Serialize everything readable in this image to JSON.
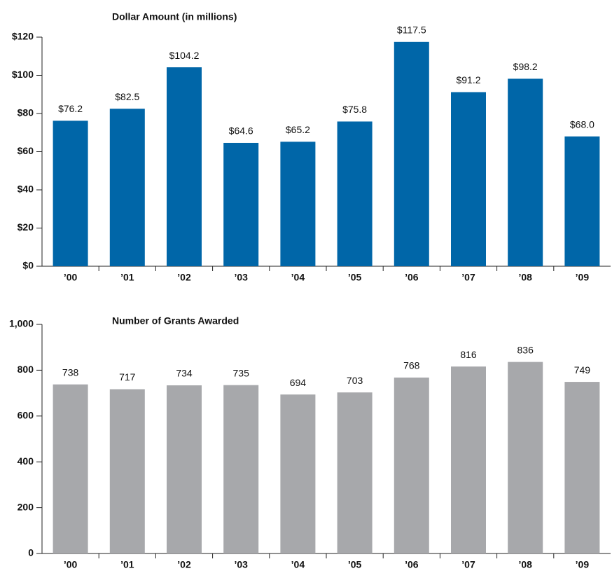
{
  "chart_data": [
    {
      "type": "bar",
      "title": "Dollar Amount (in millions)",
      "categories": [
        "’00",
        "’01",
        "’02",
        "’03",
        "’04",
        "’05",
        "’06",
        "’07",
        "’08",
        "’09"
      ],
      "values": [
        76.2,
        82.5,
        104.2,
        64.6,
        65.2,
        75.8,
        117.5,
        91.2,
        98.2,
        68.0
      ],
      "value_labels": [
        "$76.2",
        "$82.5",
        "$104.2",
        "$64.6",
        "$65.2",
        "$75.8",
        "$117.5",
        "$91.2",
        "$98.2",
        "$68.0"
      ],
      "color": "#0066a8",
      "ylim": [
        0,
        120
      ],
      "yticks": [
        {
          "value": 0,
          "label": "$0"
        },
        {
          "value": 20,
          "label": "$20"
        },
        {
          "value": 40,
          "label": "$40"
        },
        {
          "value": 60,
          "label": "$60"
        },
        {
          "value": 80,
          "label": "$80"
        },
        {
          "value": 100,
          "label": "$100"
        },
        {
          "value": 120,
          "label": "$120"
        }
      ]
    },
    {
      "type": "bar",
      "title": "Number of Grants Awarded",
      "categories": [
        "’00",
        "’01",
        "’02",
        "’03",
        "’04",
        "’05",
        "’06",
        "’07",
        "’08",
        "’09"
      ],
      "values": [
        738,
        717,
        734,
        735,
        694,
        703,
        768,
        816,
        836,
        749
      ],
      "color": "#a7a8ab",
      "ylim": [
        0,
        1000
      ],
      "yticks": [
        0,
        200,
        400,
        600,
        800,
        {
          "value": 1000,
          "label": "1,000"
        }
      ]
    }
  ]
}
